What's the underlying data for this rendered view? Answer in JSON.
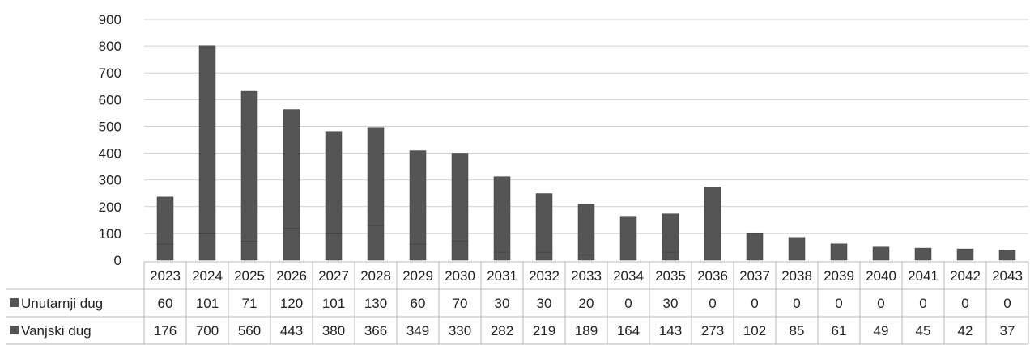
{
  "chart_data": {
    "type": "bar",
    "stacked": true,
    "categories": [
      "2023",
      "2024",
      "2025",
      "2026",
      "2027",
      "2028",
      "2029",
      "2030",
      "2031",
      "2032",
      "2033",
      "2034",
      "2035",
      "2036",
      "2037",
      "2038",
      "2039",
      "2040",
      "2041",
      "2042",
      "2043"
    ],
    "series": [
      {
        "name": "Unutarnji dug",
        "values": [
          60,
          101,
          71,
          120,
          101,
          130,
          60,
          70,
          30,
          30,
          20,
          0,
          30,
          0,
          0,
          0,
          0,
          0,
          0,
          0,
          0
        ],
        "color": "#555555"
      },
      {
        "name": "Vanjski dug",
        "values": [
          176,
          700,
          560,
          443,
          380,
          366,
          349,
          330,
          282,
          219,
          189,
          164,
          143,
          273,
          102,
          85,
          61,
          49,
          45,
          42,
          37
        ],
        "color": "#555555"
      }
    ],
    "ylim": [
      0,
      900
    ],
    "yticks": [
      0,
      100,
      200,
      300,
      400,
      500,
      600,
      700,
      800,
      900
    ],
    "grid": true,
    "legend": "data-table"
  },
  "colors": {
    "bar": "#555555",
    "bar_edge": "#3a3a3a",
    "grid": "#d0d0d0",
    "table_line": "#b8b8b8"
  }
}
